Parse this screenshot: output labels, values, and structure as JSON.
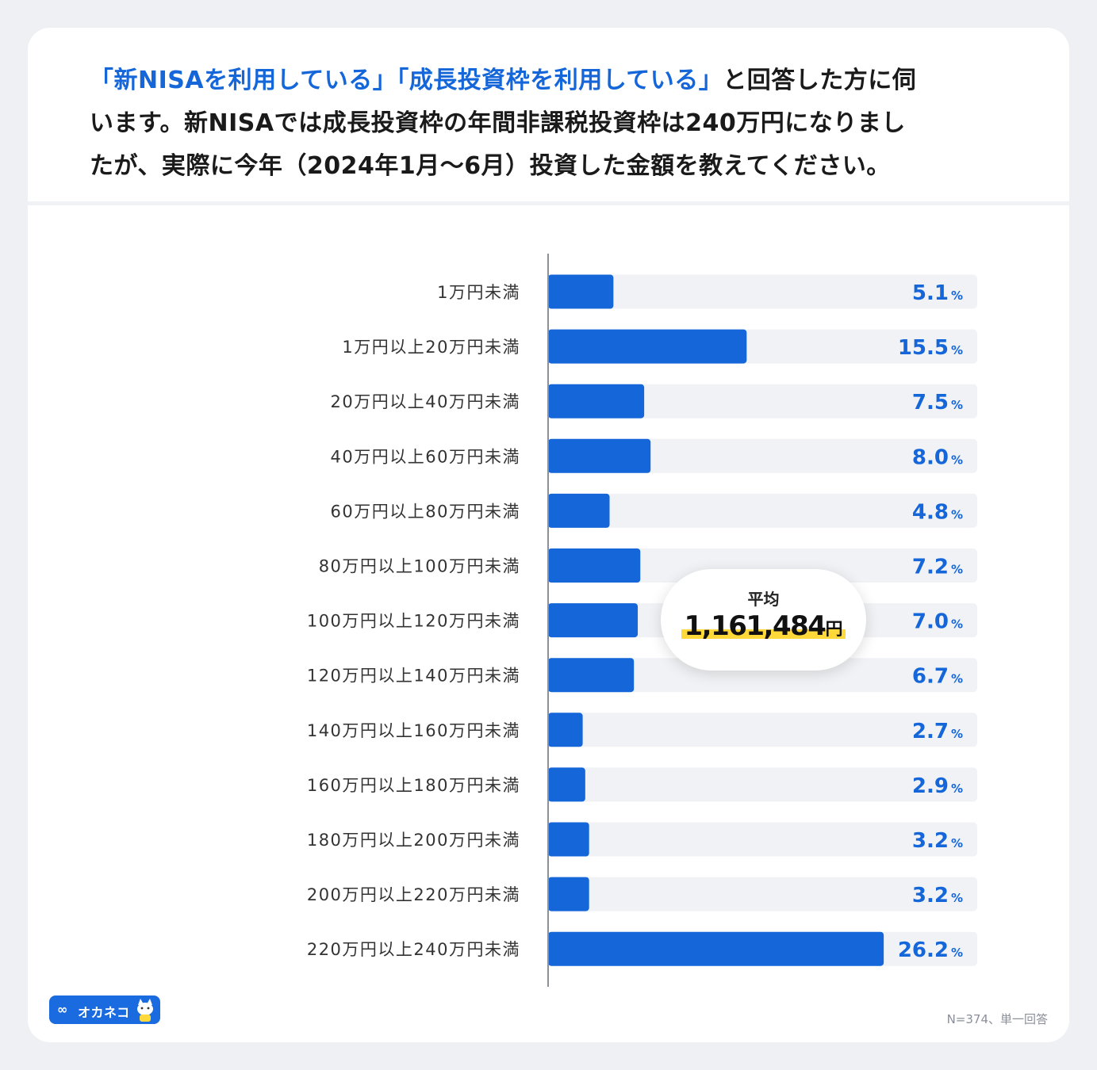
{
  "question": {
    "part1": "「新NISAを利用している」「成長投資枠を利用している」",
    "part2": "と回答した方に伺",
    "line2": "います。新NISAでは成長投資枠の年間非課税投資枠は240万円になりまし",
    "line3": "たが、実際に今年（2024年1月〜6月）投資した金額を教えてください。"
  },
  "average": {
    "label": "平均",
    "value": "1,161,484",
    "unit": "円"
  },
  "note": "N=374、単一回答",
  "logo": {
    "text": "オカネコ",
    "icon": "infinity-icon"
  },
  "colors": {
    "bar": "#1466d9",
    "track": "#f1f2f5",
    "percent_text": "#1466d9",
    "highlight": "#ffd83a"
  },
  "chart_data": {
    "type": "bar",
    "orientation": "horizontal",
    "unit": "%",
    "categories": [
      "1万円未満",
      "1万円以上20万円未満",
      "20万円以上40万円未満",
      "40万円以上60万円未満",
      "60万円以上80万円未満",
      "80万円以上100万円未満",
      "100万円以上120万円未満",
      "120万円以上140万円未満",
      "140万円以上160万円未満",
      "160万円以上180万円未満",
      "180万円以上200万円未満",
      "200万円以上220万円未満",
      "220万円以上240万円未満"
    ],
    "values": [
      5.1,
      15.5,
      7.5,
      8.0,
      4.8,
      7.2,
      7.0,
      6.7,
      2.7,
      2.9,
      3.2,
      3.2,
      26.2
    ],
    "labels": [
      "5.1",
      "15.5",
      "7.5",
      "8.0",
      "4.8",
      "7.2",
      "7.0",
      "6.7",
      "2.7",
      "2.9",
      "3.2",
      "3.2",
      "26.2"
    ],
    "xlim": [
      0,
      33.5
    ],
    "grid": false
  }
}
